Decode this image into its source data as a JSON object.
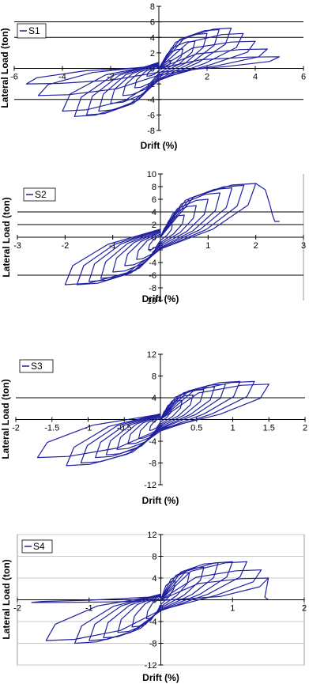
{
  "colors": {
    "series": "#1f1fa0",
    "axis": "#000000",
    "grid": "#000000",
    "grid4": "#c8c8c8",
    "border": "#9a9a9a"
  },
  "chart_data": [
    {
      "type": "line",
      "legend": "S1",
      "xlabel": "Drift (%)",
      "ylabel": "Lateral Load (ton)",
      "xlim": [
        -6,
        6
      ],
      "ylim": [
        -8,
        8
      ],
      "xticks": [
        "-6",
        "-4",
        "-2",
        "0",
        "2",
        "4",
        "6"
      ],
      "yticks": [
        "-8",
        "-6",
        "-4",
        "-2",
        "0",
        "2",
        "4",
        "6",
        "8"
      ],
      "hlines": [
        6,
        4,
        -4
      ],
      "loops": [
        {
          "xmax": 0.5,
          "ypos": 1.0,
          "xmin": -0.5,
          "yneg": -1.0
        },
        {
          "xmax": 1.0,
          "ypos": 2.5,
          "xmin": -1.0,
          "yneg": -2.5
        },
        {
          "xmax": 1.5,
          "ypos": 3.5,
          "xmin": -1.5,
          "yneg": -3.5
        },
        {
          "xmax": 2.0,
          "ypos": 4.5,
          "xmin": -2.0,
          "yneg": -4.5
        },
        {
          "xmax": 2.5,
          "ypos": 5.0,
          "xmin": -2.5,
          "yneg": -5.5
        },
        {
          "xmax": 3.0,
          "ypos": 5.2,
          "xmin": -3.0,
          "yneg": -6.0
        },
        {
          "xmax": 3.5,
          "ypos": 4.5,
          "xmin": -3.5,
          "yneg": -6.2
        },
        {
          "xmax": 4.0,
          "ypos": 3.5,
          "xmin": -4.0,
          "yneg": -5.5
        },
        {
          "xmax": 4.5,
          "ypos": 2.5,
          "xmin": -5.0,
          "yneg": -3.5
        },
        {
          "xmax": 5.0,
          "ypos": 1.5,
          "xmin": -5.5,
          "yneg": -2.0
        }
      ],
      "tail": []
    },
    {
      "type": "line",
      "legend": "S2",
      "xlabel": "Drift (%)",
      "ylabel": "Lateral Load (ton)",
      "xlim": [
        -3,
        3
      ],
      "ylim": [
        -10,
        10
      ],
      "xticks": [
        "-3",
        "-2",
        "-1",
        "0",
        "1",
        "2",
        "3"
      ],
      "yticks": [
        "-10",
        "-8",
        "-6",
        "-4",
        "-2",
        "0",
        "2",
        "4",
        "6",
        "8",
        "10"
      ],
      "hlines": [
        4,
        2,
        -6
      ],
      "loops": [
        {
          "xmax": 0.25,
          "ypos": 2.0,
          "xmin": -0.25,
          "yneg": -2.0
        },
        {
          "xmax": 0.5,
          "ypos": 3.5,
          "xmin": -0.5,
          "yneg": -3.5
        },
        {
          "xmax": 0.75,
          "ypos": 5.0,
          "xmin": -0.75,
          "yneg": -4.5
        },
        {
          "xmax": 1.0,
          "ypos": 6.0,
          "xmin": -1.0,
          "yneg": -5.5
        },
        {
          "xmax": 1.25,
          "ypos": 7.0,
          "xmin": -1.25,
          "yneg": -6.5
        },
        {
          "xmax": 1.5,
          "ypos": 7.8,
          "xmin": -1.5,
          "yneg": -7.0
        },
        {
          "xmax": 1.75,
          "ypos": 8.2,
          "xmin": -1.75,
          "yneg": -7.5
        },
        {
          "xmax": 2.0,
          "ypos": 8.5,
          "xmin": -2.0,
          "yneg": -7.5
        }
      ],
      "tail": [
        [
          2.2,
          7.5
        ],
        [
          2.3,
          5.0
        ],
        [
          2.35,
          3.5
        ],
        [
          2.4,
          2.5
        ],
        [
          2.5,
          2.5
        ]
      ]
    },
    {
      "type": "line",
      "legend": "S3",
      "xlabel": "Drift (%)",
      "ylabel": "Lateral Load (ton)",
      "xlim": [
        -2,
        2
      ],
      "ylim": [
        -12,
        12
      ],
      "xticks": [
        "-2",
        "-1.5",
        "-1",
        "-0.5",
        "0",
        "0.5",
        "1",
        "1.5",
        "2"
      ],
      "yticks": [
        "-12",
        "-8",
        "-4",
        "0",
        "4",
        "8",
        "12"
      ],
      "hlines": [
        4
      ],
      "loops": [
        {
          "xmax": 0.15,
          "ypos": 2.0,
          "xmin": -0.15,
          "yneg": -2.0
        },
        {
          "xmax": 0.3,
          "ypos": 3.5,
          "xmin": -0.3,
          "yneg": -3.5
        },
        {
          "xmax": 0.45,
          "ypos": 4.5,
          "xmin": -0.45,
          "yneg": -4.5
        },
        {
          "xmax": 0.6,
          "ypos": 5.5,
          "xmin": -0.6,
          "yneg": -5.5
        },
        {
          "xmax": 0.75,
          "ypos": 6.0,
          "xmin": -0.75,
          "yneg": -6.5
        },
        {
          "xmax": 0.9,
          "ypos": 6.5,
          "xmin": -0.9,
          "yneg": -7.0
        },
        {
          "xmax": 1.1,
          "ypos": 7.0,
          "xmin": -1.1,
          "yneg": -8.0
        },
        {
          "xmax": 1.3,
          "ypos": 7.0,
          "xmin": -1.3,
          "yneg": -8.5
        },
        {
          "xmax": 1.5,
          "ypos": 6.5,
          "xmin": -1.7,
          "yneg": -7.0
        }
      ],
      "tail": []
    },
    {
      "type": "line",
      "legend": "S4",
      "xlabel": "Drift (%)",
      "ylabel": "Lateral Load (ton)",
      "xlim": [
        -2,
        2
      ],
      "ylim": [
        -12,
        12
      ],
      "xticks": [
        "-2",
        "-1",
        "0",
        "1",
        "2"
      ],
      "yticks": [
        "-12",
        "-8",
        "-4",
        "0",
        "4",
        "8",
        "12"
      ],
      "hlines": [],
      "loops": [
        {
          "xmax": 0.2,
          "ypos": 3.5,
          "xmin": -0.2,
          "yneg": -3.5
        },
        {
          "xmax": 0.4,
          "ypos": 5.0,
          "xmin": -0.4,
          "yneg": -5.0
        },
        {
          "xmax": 0.6,
          "ypos": 6.0,
          "xmin": -0.6,
          "yneg": -6.0
        },
        {
          "xmax": 0.8,
          "ypos": 6.8,
          "xmin": -0.8,
          "yneg": -7.0
        },
        {
          "xmax": 1.0,
          "ypos": 7.0,
          "xmin": -1.0,
          "yneg": -7.5
        },
        {
          "xmax": 1.2,
          "ypos": 7.0,
          "xmin": -1.2,
          "yneg": -8.0
        },
        {
          "xmax": 1.4,
          "ypos": 5.5,
          "xmin": -1.6,
          "yneg": -7.5
        },
        {
          "xmax": 1.5,
          "ypos": 4.0,
          "xmin": -1.8,
          "yneg": -0.5
        }
      ],
      "tail": [
        [
          1.45,
          0.5
        ],
        [
          1.5,
          0.0
        ]
      ]
    }
  ]
}
